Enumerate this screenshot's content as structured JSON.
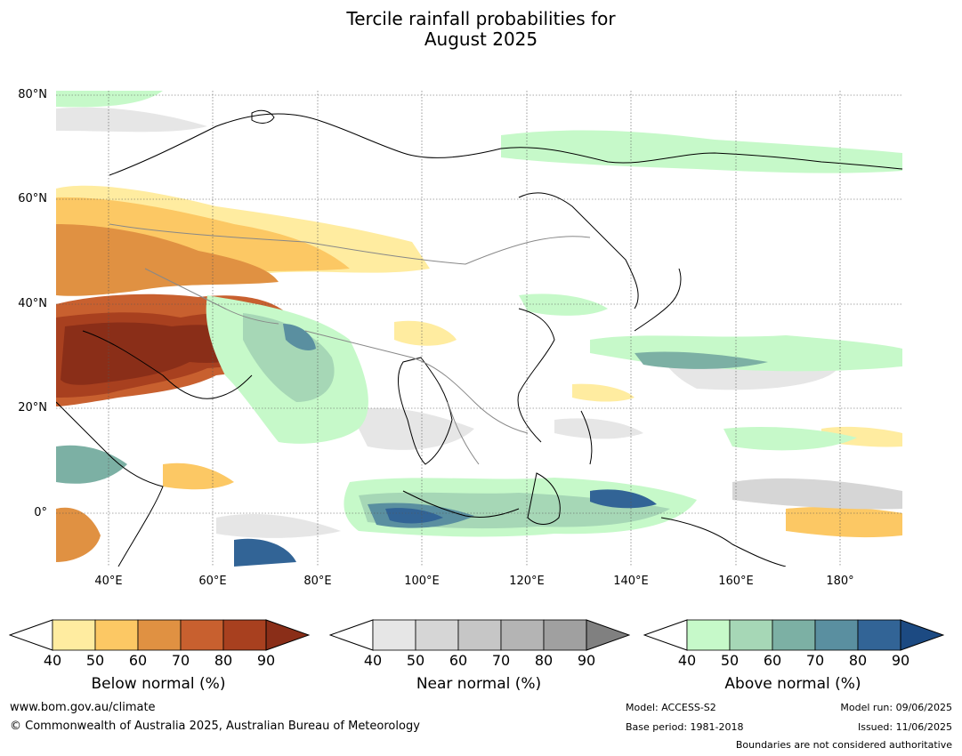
{
  "title_line1": "Tercile rainfall probabilities for",
  "title_line2": "August 2025",
  "map": {
    "lat_labels": [
      "80°N",
      "60°N",
      "40°N",
      "20°N",
      "0°"
    ],
    "lon_labels": [
      "40°E",
      "60°E",
      "80°E",
      "100°E",
      "120°E",
      "140°E",
      "160°E",
      "180°"
    ],
    "lon_range": [
      30,
      192
    ],
    "lat_range": [
      -10,
      81
    ]
  },
  "colorbars": [
    {
      "label": "Below normal (%)",
      "ticks": [
        "40",
        "50",
        "60",
        "70",
        "80",
        "90"
      ],
      "colors": [
        "#ffffff",
        "#ffeca0",
        "#fcc864",
        "#e09142",
        "#c8602f",
        "#a8401f",
        "#8a2e18"
      ]
    },
    {
      "label": "Near normal (%)",
      "ticks": [
        "40",
        "50",
        "60",
        "70",
        "80",
        "90"
      ],
      "colors": [
        "#ffffff",
        "#e6e6e6",
        "#d6d6d6",
        "#c6c6c6",
        "#b4b4b4",
        "#a0a0a0",
        "#808080"
      ]
    },
    {
      "label": "Above normal (%)",
      "ticks": [
        "40",
        "50",
        "60",
        "70",
        "80",
        "90"
      ],
      "colors": [
        "#ffffff",
        "#c6f9c9",
        "#a6d7b6",
        "#7cb0a4",
        "#5a8fa0",
        "#326496",
        "#1c4a82"
      ]
    }
  ],
  "footer": {
    "url": "www.bom.gov.au/climate",
    "copyright": "© Commonwealth of Australia 2025, Australian Bureau of Meteorology",
    "model": "Model: ACCESS-S2",
    "base_period": "Base period: 1981-2018",
    "model_run": "Model run: 09/06/2025",
    "issued": "Issued: 11/06/2025",
    "disclaimer": "Boundaries are not considered authoritative"
  }
}
